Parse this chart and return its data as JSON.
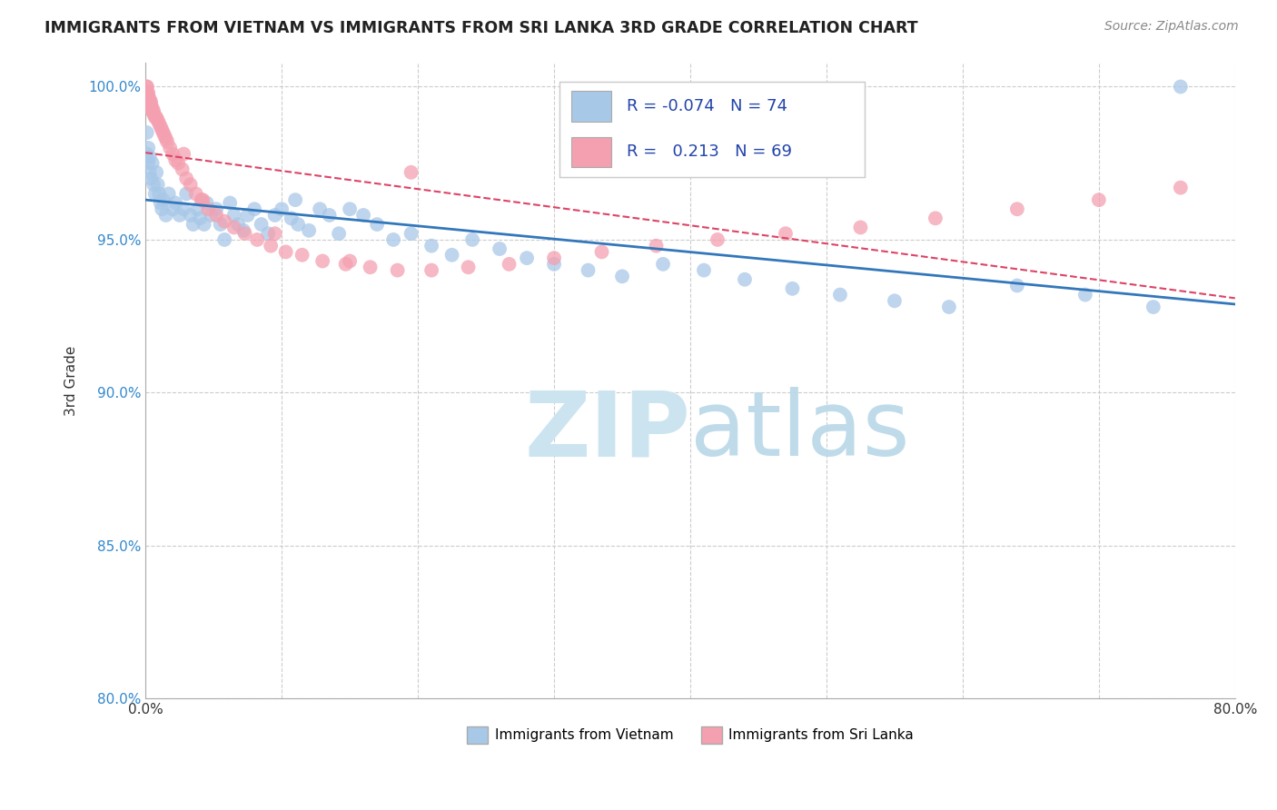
{
  "title": "IMMIGRANTS FROM VIETNAM VS IMMIGRANTS FROM SRI LANKA 3RD GRADE CORRELATION CHART",
  "source": "Source: ZipAtlas.com",
  "ylabel": "3rd Grade",
  "x_min": 0.0,
  "x_max": 0.8,
  "y_min": 0.8,
  "y_max": 1.008,
  "x_ticks": [
    0.0,
    0.1,
    0.2,
    0.3,
    0.4,
    0.5,
    0.6,
    0.7,
    0.8
  ],
  "x_tick_labels": [
    "0.0%",
    "",
    "",
    "",
    "",
    "",
    "",
    "",
    "80.0%"
  ],
  "y_ticks": [
    0.8,
    0.85,
    0.9,
    0.95,
    1.0
  ],
  "y_tick_labels": [
    "80.0%",
    "85.0%",
    "90.0%",
    "95.0%",
    "100.0%"
  ],
  "legend_r_vietnam": "-0.074",
  "legend_n_vietnam": "74",
  "legend_r_srilanka": "0.213",
  "legend_n_srilanka": "69",
  "color_vietnam": "#a8c8e8",
  "color_srilanka": "#f4a0b0",
  "trendline_vietnam_color": "#3377bb",
  "trendline_srilanka_color": "#dd4466",
  "watermark_color": "#cce4f0",
  "grid_color": "#cccccc",
  "vietnam_x": [
    0.001,
    0.001,
    0.002,
    0.002,
    0.003,
    0.003,
    0.004,
    0.005,
    0.006,
    0.007,
    0.008,
    0.009,
    0.01,
    0.011,
    0.012,
    0.013,
    0.015,
    0.017,
    0.02,
    0.022,
    0.025,
    0.028,
    0.03,
    0.033,
    0.035,
    0.038,
    0.04,
    0.043,
    0.045,
    0.048,
    0.052,
    0.055,
    0.058,
    0.062,
    0.065,
    0.068,
    0.072,
    0.075,
    0.08,
    0.085,
    0.09,
    0.095,
    0.1,
    0.107,
    0.112,
    0.12,
    0.128,
    0.135,
    0.142,
    0.15,
    0.16,
    0.17,
    0.182,
    0.195,
    0.21,
    0.225,
    0.24,
    0.26,
    0.28,
    0.3,
    0.325,
    0.35,
    0.38,
    0.41,
    0.44,
    0.475,
    0.51,
    0.55,
    0.59,
    0.64,
    0.69,
    0.74,
    0.11,
    0.76
  ],
  "vietnam_y": [
    0.985,
    0.978,
    0.98,
    0.975,
    0.977,
    0.972,
    0.97,
    0.975,
    0.968,
    0.965,
    0.972,
    0.968,
    0.965,
    0.962,
    0.96,
    0.963,
    0.958,
    0.965,
    0.96,
    0.962,
    0.958,
    0.96,
    0.965,
    0.958,
    0.955,
    0.96,
    0.957,
    0.955,
    0.962,
    0.958,
    0.96,
    0.955,
    0.95,
    0.962,
    0.958,
    0.955,
    0.953,
    0.958,
    0.96,
    0.955,
    0.952,
    0.958,
    0.96,
    0.957,
    0.955,
    0.953,
    0.96,
    0.958,
    0.952,
    0.96,
    0.958,
    0.955,
    0.95,
    0.952,
    0.948,
    0.945,
    0.95,
    0.947,
    0.944,
    0.942,
    0.94,
    0.938,
    0.942,
    0.94,
    0.937,
    0.934,
    0.932,
    0.93,
    0.928,
    0.935,
    0.932,
    0.928,
    0.963,
    1.0
  ],
  "srilanka_x": [
    0.001,
    0.001,
    0.001,
    0.001,
    0.001,
    0.002,
    0.002,
    0.002,
    0.002,
    0.003,
    0.003,
    0.003,
    0.004,
    0.004,
    0.004,
    0.005,
    0.005,
    0.006,
    0.006,
    0.007,
    0.008,
    0.009,
    0.01,
    0.011,
    0.012,
    0.013,
    0.014,
    0.015,
    0.016,
    0.018,
    0.02,
    0.022,
    0.024,
    0.027,
    0.03,
    0.033,
    0.037,
    0.041,
    0.046,
    0.052,
    0.058,
    0.065,
    0.073,
    0.082,
    0.092,
    0.103,
    0.115,
    0.13,
    0.147,
    0.165,
    0.185,
    0.21,
    0.237,
    0.267,
    0.3,
    0.335,
    0.375,
    0.42,
    0.47,
    0.525,
    0.58,
    0.64,
    0.7,
    0.76,
    0.195,
    0.042,
    0.028,
    0.15,
    0.095
  ],
  "srilanka_y": [
    1.0,
    1.0,
    0.998,
    0.998,
    0.997,
    0.998,
    0.997,
    0.996,
    0.995,
    0.996,
    0.995,
    0.994,
    0.995,
    0.994,
    0.993,
    0.993,
    0.992,
    0.992,
    0.991,
    0.99,
    0.99,
    0.989,
    0.988,
    0.987,
    0.986,
    0.985,
    0.984,
    0.983,
    0.982,
    0.98,
    0.978,
    0.976,
    0.975,
    0.973,
    0.97,
    0.968,
    0.965,
    0.963,
    0.96,
    0.958,
    0.956,
    0.954,
    0.952,
    0.95,
    0.948,
    0.946,
    0.945,
    0.943,
    0.942,
    0.941,
    0.94,
    0.94,
    0.941,
    0.942,
    0.944,
    0.946,
    0.948,
    0.95,
    0.952,
    0.954,
    0.957,
    0.96,
    0.963,
    0.967,
    0.972,
    0.963,
    0.978,
    0.943,
    0.952
  ]
}
